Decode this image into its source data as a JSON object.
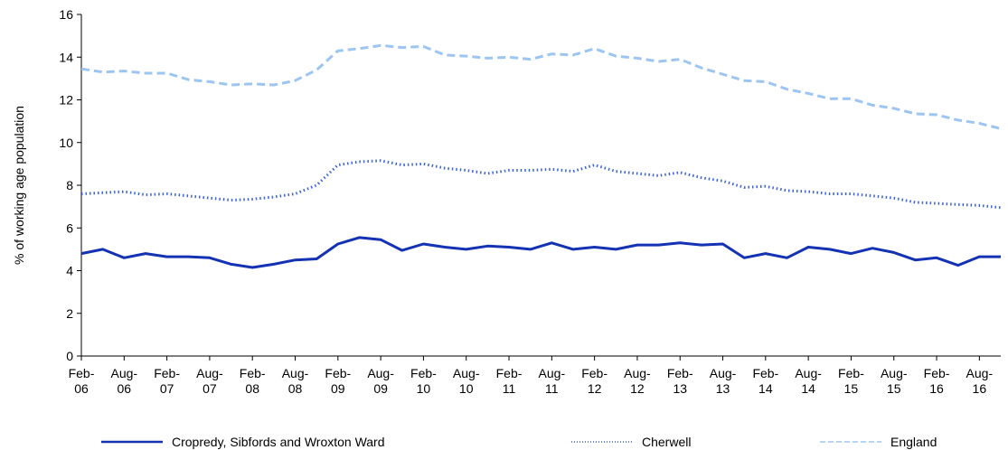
{
  "chart_data": {
    "type": "line",
    "y_label": "% of working age population",
    "categories": [
      "Feb-06",
      null,
      "Aug-06",
      null,
      "Feb-07",
      null,
      "Aug-07",
      null,
      "Feb-08",
      null,
      "Aug-08",
      null,
      "Feb-09",
      null,
      "Aug-09",
      null,
      "Feb-10",
      null,
      "Aug-10",
      null,
      "Feb-11",
      null,
      "Aug-11",
      null,
      "Feb-12",
      null,
      "Aug-12",
      null,
      "Feb-13",
      null,
      "Aug-13",
      null,
      "Feb-14",
      null,
      "Aug-14",
      null,
      "Feb-15",
      null,
      "Aug-15",
      null,
      "Feb-16",
      null,
      "Aug-16",
      null
    ],
    "series": [
      {
        "name": "Cropredy, Sibfords and Wroxton Ward",
        "color": "#1432b4",
        "dash": "solid",
        "values": [
          4.8,
          5.0,
          4.6,
          4.8,
          4.65,
          4.65,
          4.6,
          4.3,
          4.15,
          4.3,
          4.5,
          4.55,
          5.25,
          5.55,
          5.45,
          4.95,
          5.25,
          5.1,
          5.0,
          5.15,
          5.1,
          5.0,
          5.3,
          5.0,
          5.1,
          5.0,
          5.2,
          5.2,
          5.3,
          5.2,
          5.25,
          4.6,
          4.8,
          4.6,
          5.1,
          5.0,
          4.8,
          5.05,
          4.85,
          4.5,
          4.6,
          4.25,
          4.65,
          4.65
        ]
      },
      {
        "name": "Cherwell",
        "color": "#3a62dc",
        "dash": "dotted",
        "values": [
          7.6,
          7.65,
          7.7,
          7.55,
          7.6,
          7.5,
          7.4,
          7.3,
          7.35,
          7.45,
          7.6,
          8.0,
          8.95,
          9.1,
          9.15,
          8.95,
          9.0,
          8.8,
          8.7,
          8.55,
          8.7,
          8.7,
          8.75,
          8.65,
          8.95,
          8.65,
          8.55,
          8.45,
          8.6,
          8.35,
          8.2,
          7.9,
          7.95,
          7.75,
          7.7,
          7.6,
          7.6,
          7.5,
          7.4,
          7.2,
          7.15,
          7.1,
          7.05,
          6.95
        ]
      },
      {
        "name": "England",
        "color": "#9dc5f2",
        "dash": "dashed",
        "values": [
          13.45,
          13.3,
          13.35,
          13.25,
          13.25,
          12.95,
          12.85,
          12.7,
          12.75,
          12.7,
          12.9,
          13.4,
          14.3,
          14.4,
          14.55,
          14.45,
          14.5,
          14.1,
          14.05,
          13.95,
          14.0,
          13.9,
          14.15,
          14.1,
          14.4,
          14.05,
          13.95,
          13.8,
          13.9,
          13.5,
          13.2,
          12.9,
          12.85,
          12.5,
          12.3,
          12.05,
          12.05,
          11.75,
          11.6,
          11.35,
          11.3,
          11.05,
          10.9,
          10.65
        ]
      }
    ],
    "ylim": [
      0,
      16
    ],
    "yticks": [
      0,
      2,
      4,
      6,
      8,
      10,
      12,
      14,
      16
    ],
    "grid": false,
    "legend": "bottom"
  }
}
